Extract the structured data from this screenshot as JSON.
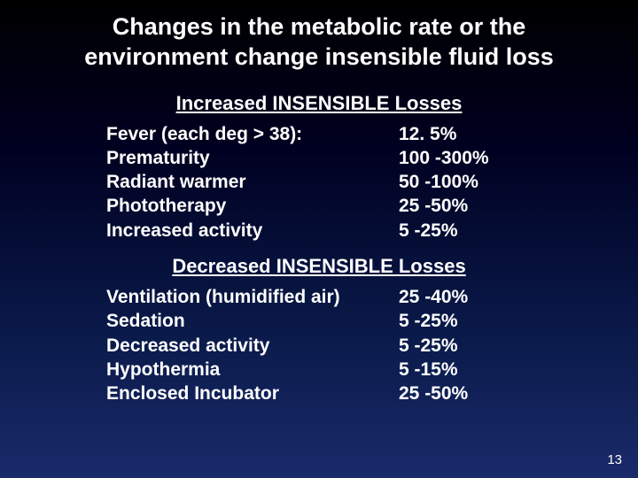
{
  "title_line1": "Changes in the metabolic rate or the",
  "title_line2": "environment change insensible fluid loss",
  "increased_header": "Increased INSENSIBLE Losses",
  "increased_rows": [
    {
      "label": "Fever (each deg > 38):",
      "value": "12. 5%"
    },
    {
      "label": "Prematurity",
      "value": "100 -300%"
    },
    {
      "label": "Radiant warmer",
      "value": "50 -100%"
    },
    {
      "label": "Phototherapy",
      "value": "25 -50%"
    },
    {
      "label": "Increased activity",
      "value": "5 -25%"
    }
  ],
  "decreased_header": "Decreased INSENSIBLE Losses",
  "decreased_rows": [
    {
      "label": "Ventilation (humidified air)",
      "value": "25 -40%"
    },
    {
      "label": "Sedation",
      "value": "5 -25%"
    },
    {
      "label": "Decreased activity",
      "value": "5 -25%"
    },
    {
      "label": "Hypothermia",
      "value": "5 -15%"
    },
    {
      "label": "Enclosed Incubator",
      "value": "25 -50%"
    }
  ],
  "page_number": "13"
}
